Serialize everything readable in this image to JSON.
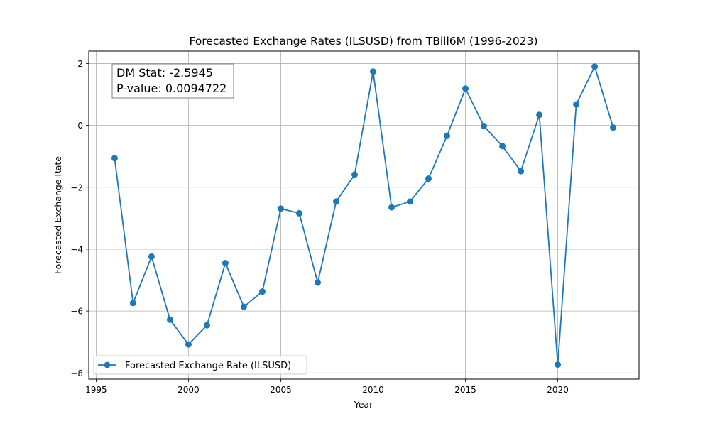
{
  "chart_data": {
    "type": "line",
    "title": "Forecasted Exchange Rates (ILSUSD) from TBill6M (1996-2023)",
    "xlabel": "Year",
    "ylabel": "Forecasted Exchange Rate",
    "xlim": [
      1994.6,
      2024.4
    ],
    "ylim": [
      -8.2,
      2.4
    ],
    "xticks": [
      1995,
      2000,
      2005,
      2010,
      2015,
      2020
    ],
    "yticks": [
      -8,
      -6,
      -4,
      -2,
      0,
      2
    ],
    "grid": true,
    "legend_position": "lower-left",
    "series": [
      {
        "name": "Forecasted Exchange Rate (ILSUSD)",
        "color": "#1f77b4",
        "marker": "circle",
        "x": [
          1996,
          1997,
          1998,
          1999,
          2000,
          2001,
          2002,
          2003,
          2004,
          2005,
          2006,
          2007,
          2008,
          2009,
          2010,
          2011,
          2012,
          2013,
          2014,
          2015,
          2016,
          2017,
          2018,
          2019,
          2020,
          2021,
          2022,
          2023
        ],
        "y": [
          -1.06,
          -5.74,
          -4.24,
          -6.28,
          -7.08,
          -6.46,
          -4.45,
          -5.86,
          -5.37,
          -2.69,
          -2.84,
          -5.08,
          -2.46,
          -1.59,
          1.74,
          -2.65,
          -2.46,
          -1.72,
          -0.34,
          1.19,
          -0.02,
          -0.67,
          -1.48,
          0.34,
          -7.73,
          0.68,
          1.9,
          -0.07
        ]
      }
    ],
    "annotation": {
      "line1": "DM Stat: -2.5945",
      "line2": "P-value: 0.0094722"
    }
  }
}
